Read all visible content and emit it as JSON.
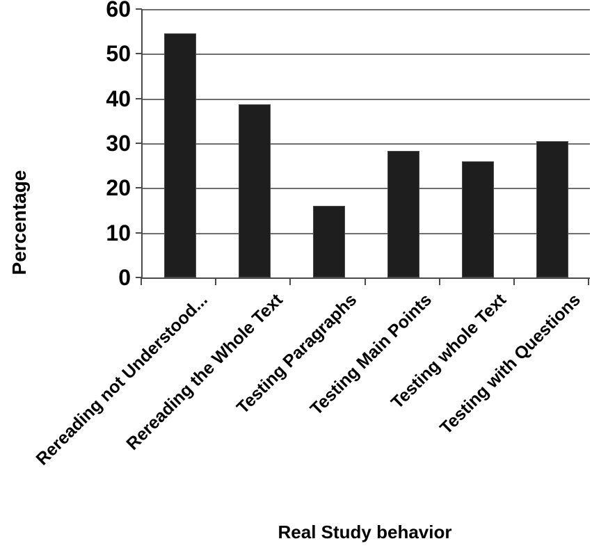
{
  "chart_data": {
    "type": "bar",
    "title": "",
    "xlabel": "Real Study behavior",
    "ylabel": "Percentage",
    "categories": [
      "Rereading not Understood...",
      "Rereading the Whole Text",
      "Testing Paragraphs",
      "Testing Main Points",
      "Testing whole Text",
      "Testing with Questions"
    ],
    "values": [
      54.5,
      38.7,
      16.0,
      28.3,
      26.0,
      30.4
    ],
    "ylim": [
      0,
      60
    ],
    "yticks": [
      0,
      10,
      20,
      30,
      40,
      50,
      60
    ],
    "grid": true,
    "legend": "none",
    "colors": {
      "bar": "#1e1e1e",
      "gridline": "#6e6e6e",
      "axis": "#4a4a4a",
      "text": "#000000",
      "background": "#ffffff"
    }
  }
}
